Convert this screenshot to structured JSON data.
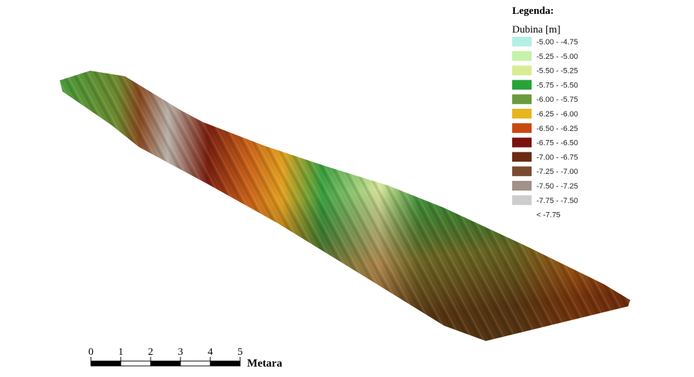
{
  "legend": {
    "title": "Legenda:",
    "subtitle": "Dubina [m]",
    "items": [
      {
        "label": "-5.00 - -4.75",
        "color": "#b3efe6"
      },
      {
        "label": "-5.25 - -5.00",
        "color": "#c6f2aa"
      },
      {
        "label": "-5.50 - -5.25",
        "color": "#d9ec93"
      },
      {
        "label": "-5.75 - -5.50",
        "color": "#27a33a"
      },
      {
        "label": "-6.00 - -5.75",
        "color": "#6b9b3d"
      },
      {
        "label": "-6.25 - -6.00",
        "color": "#e7b61f"
      },
      {
        "label": "-6.50 - -6.25",
        "color": "#c8490f"
      },
      {
        "label": "-6.75 - -6.50",
        "color": "#7a1210"
      },
      {
        "label": "-7.00 - -6.75",
        "color": "#6a2b12"
      },
      {
        "label": "-7.25 - -7.00",
        "color": "#7b4b31"
      },
      {
        "label": "-7.50 - -7.25",
        "color": "#a39289"
      },
      {
        "label": "-7.75 - -7.50",
        "color": "#cdcdcd"
      },
      {
        "label": "< -7.75",
        "color": "#ffffff"
      }
    ]
  },
  "scale_bar": {
    "ticks": [
      "0",
      "1",
      "2",
      "3",
      "4",
      "5"
    ],
    "unit": "Metara"
  }
}
